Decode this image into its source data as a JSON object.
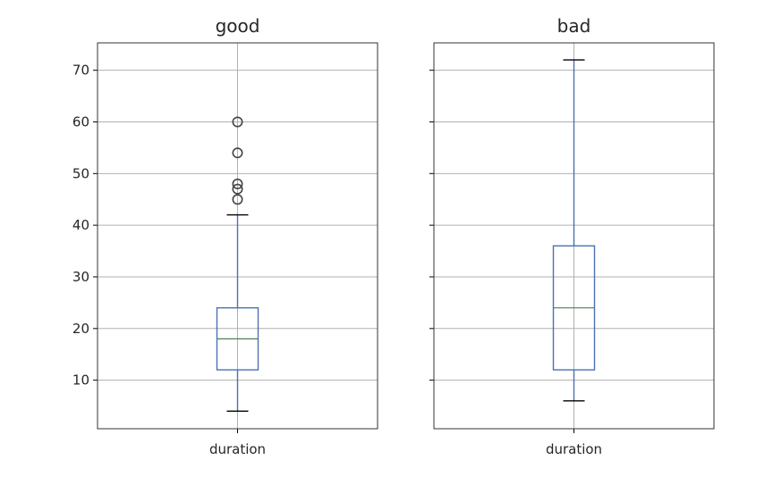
{
  "chart_data": [
    {
      "type": "box",
      "title": "good",
      "categories": [
        "duration"
      ],
      "ylim": [
        0.6,
        75.3
      ],
      "yticks": [
        10,
        20,
        30,
        40,
        50,
        60,
        70
      ],
      "show_ytick_labels": true,
      "grid": true,
      "boxes": [
        {
          "category": "duration",
          "whisker_low": 4,
          "q1": 12,
          "median": 18,
          "q3": 24,
          "whisker_high": 42,
          "outliers": [
            45,
            47,
            48,
            54,
            60
          ]
        }
      ],
      "colors": {
        "box": "#4c72b0",
        "median": "#4d7f56",
        "whisker_cap": "#000000",
        "outlier": "#444444",
        "grid": "#b0b0b0"
      }
    },
    {
      "type": "box",
      "title": "bad",
      "categories": [
        "duration"
      ],
      "ylim": [
        0.6,
        75.3
      ],
      "yticks": [
        10,
        20,
        30,
        40,
        50,
        60,
        70
      ],
      "show_ytick_labels": false,
      "grid": true,
      "boxes": [
        {
          "category": "duration",
          "whisker_low": 6,
          "q1": 12,
          "median": 24,
          "q3": 36,
          "whisker_high": 72,
          "outliers": []
        }
      ],
      "colors": {
        "box": "#4c72b0",
        "median": "#4d7f56",
        "whisker_cap": "#000000",
        "outlier": "#444444",
        "grid": "#b0b0b0"
      }
    }
  ]
}
